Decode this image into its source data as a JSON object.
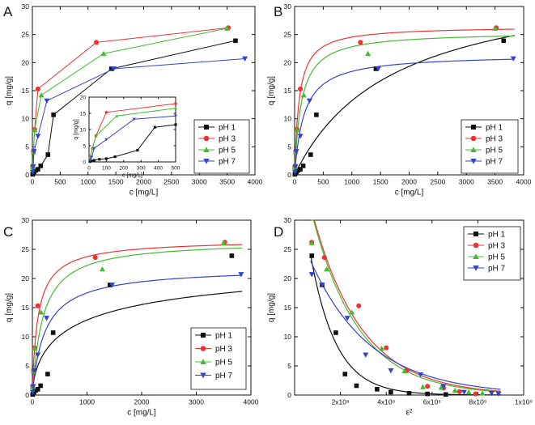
{
  "figure_labels": {
    "a": "A",
    "b": "B",
    "c": "C",
    "d": "D"
  },
  "series_colors": {
    "pH 1": "#111111",
    "pH 3": "#ee3333",
    "pH 5": "#44bb33",
    "pH 7": "#3344cc"
  },
  "series_markers": {
    "pH 1": "square",
    "pH 3": "circle",
    "pH 5": "triangle-up",
    "pH 7": "triangle-down"
  },
  "chart_data": [
    {
      "id": "a",
      "type": "line",
      "panel_label": "A",
      "xlabel": "c [mg/L]",
      "ylabel": "q [mg/g]",
      "xlim": [
        0,
        4000
      ],
      "ylim": [
        0,
        30
      ],
      "xticks": [
        0,
        500,
        1000,
        1500,
        2000,
        2500,
        3000,
        3500,
        4000
      ],
      "yticks": [
        0,
        5,
        10,
        15,
        20,
        25,
        30
      ],
      "legend": [
        "pH 1",
        "pH 3",
        "pH 5",
        "pH 7"
      ],
      "legend_position": "right-middle",
      "series": [
        {
          "name": "pH 1",
          "x": [
            5,
            15,
            30,
            60,
            100,
            150,
            280,
            380,
            1420,
            3650
          ],
          "y": [
            0.1,
            0.3,
            0.5,
            0.8,
            1.0,
            1.6,
            3.6,
            10.7,
            18.9,
            23.9
          ]
        },
        {
          "name": "pH 3",
          "x": [
            5,
            20,
            40,
            100,
            1150,
            3520
          ],
          "y": [
            1.5,
            4.2,
            8.1,
            15.3,
            23.6,
            26.2
          ]
        },
        {
          "name": "pH 5",
          "x": [
            5,
            20,
            40,
            160,
            1280,
            3500
          ],
          "y": [
            1.4,
            4.1,
            8.0,
            14.2,
            21.6,
            26.1
          ]
        },
        {
          "name": "pH 7",
          "x": [
            5,
            15,
            30,
            100,
            260,
            1460,
            3820
          ],
          "y": [
            0.5,
            1.5,
            4.2,
            6.9,
            13.2,
            18.9,
            20.7
          ]
        }
      ],
      "inset": {
        "xlabel": "c [mg/L]",
        "ylabel": "q [mg/g]",
        "xlim": [
          0,
          500
        ],
        "ylim": [
          0,
          20
        ],
        "xticks": [
          0,
          100,
          200,
          300,
          400,
          500
        ],
        "yticks": [
          0,
          5,
          10,
          15,
          20
        ],
        "series": [
          {
            "name": "pH 1",
            "x": [
              5,
              15,
              30,
              60,
              100,
              150,
              280,
              380,
              500
            ],
            "y": [
              0.1,
              0.3,
              0.5,
              0.8,
              1.0,
              1.6,
              3.6,
              10.7,
              11.5
            ]
          },
          {
            "name": "pH 3",
            "x": [
              5,
              20,
              40,
              100,
              500
            ],
            "y": [
              1.5,
              4.2,
              8.1,
              15.3,
              18.0
            ]
          },
          {
            "name": "pH 5",
            "x": [
              5,
              20,
              40,
              160,
              500
            ],
            "y": [
              1.4,
              4.1,
              8.0,
              14.2,
              16.6
            ]
          },
          {
            "name": "pH 7",
            "x": [
              5,
              15,
              30,
              100,
              260,
              500
            ],
            "y": [
              0.5,
              1.5,
              4.2,
              6.9,
              13.2,
              14.2
            ]
          }
        ]
      }
    },
    {
      "id": "b",
      "type": "scatter",
      "panel_label": "B",
      "xlabel": "c [mg/L]",
      "ylabel": "q [mg/g]",
      "xlim": [
        0,
        4000
      ],
      "ylim": [
        0,
        30
      ],
      "xticks": [
        0,
        500,
        1000,
        1500,
        2000,
        2500,
        3000,
        3500,
        4000
      ],
      "yticks": [
        0,
        5,
        10,
        15,
        20,
        25,
        30
      ],
      "legend": [
        "pH 1",
        "pH 3",
        "pH 5",
        "pH 7"
      ],
      "legend_position": "right-middle",
      "fit_model": "langmuir",
      "series": [
        {
          "name": "pH 1",
          "x": [
            5,
            15,
            30,
            60,
            100,
            150,
            280,
            380,
            1420,
            3650
          ],
          "y": [
            0.1,
            0.3,
            0.5,
            0.8,
            1.0,
            1.6,
            3.6,
            10.7,
            18.9,
            23.9
          ],
          "fit": {
            "qmax": 36.0,
            "k": 0.00058
          }
        },
        {
          "name": "pH 3",
          "x": [
            5,
            20,
            40,
            100,
            1150,
            3520
          ],
          "y": [
            1.5,
            4.2,
            8.1,
            15.3,
            23.6,
            26.2
          ],
          "fit": {
            "qmax": 26.5,
            "k": 0.0125
          }
        },
        {
          "name": "pH 5",
          "x": [
            5,
            20,
            40,
            160,
            1280,
            3500
          ],
          "y": [
            1.4,
            4.1,
            8.0,
            14.2,
            21.6,
            26.1
          ],
          "fit": {
            "qmax": 25.5,
            "k": 0.0085
          }
        },
        {
          "name": "pH 7",
          "x": [
            5,
            15,
            30,
            100,
            260,
            1460,
            3820
          ],
          "y": [
            0.5,
            1.5,
            4.2,
            6.9,
            13.2,
            18.9,
            20.7
          ],
          "fit": {
            "qmax": 21.5,
            "k": 0.006
          }
        }
      ]
    },
    {
      "id": "c",
      "type": "scatter",
      "panel_label": "C",
      "xlabel": "c [mg/L]",
      "ylabel": "q [mg/g]",
      "xlim": [
        0,
        4000
      ],
      "ylim": [
        0,
        30
      ],
      "xticks": [
        0,
        1000,
        2000,
        3000,
        4000
      ],
      "yticks": [
        0,
        5,
        10,
        15,
        20,
        25,
        30
      ],
      "legend": [
        "pH 1",
        "pH 3",
        "pH 5",
        "pH 7"
      ],
      "legend_position": "right-bottom",
      "fit_model": "langmuir-freundlich",
      "series": [
        {
          "name": "pH 1",
          "x": [
            5,
            15,
            30,
            60,
            100,
            150,
            280,
            380,
            1420,
            3650
          ],
          "y": [
            0.1,
            0.3,
            0.5,
            0.8,
            1.0,
            1.6,
            3.6,
            10.7,
            18.9,
            23.9
          ],
          "fit": {
            "qmax": 25.0,
            "k": 0.0011,
            "n": 1.6
          }
        },
        {
          "name": "pH 3",
          "x": [
            5,
            20,
            40,
            100,
            1150,
            3520
          ],
          "y": [
            1.5,
            4.2,
            8.1,
            15.3,
            23.6,
            26.2
          ],
          "fit": {
            "qmax": 26.8,
            "k": 0.0095,
            "n": 1.1
          }
        },
        {
          "name": "pH 5",
          "x": [
            5,
            20,
            40,
            160,
            1280,
            3500
          ],
          "y": [
            1.4,
            4.1,
            8.0,
            14.2,
            21.6,
            26.1
          ],
          "fit": {
            "qmax": 26.5,
            "k": 0.0052,
            "n": 1.0
          }
        },
        {
          "name": "pH 7",
          "x": [
            5,
            15,
            30,
            100,
            260,
            1460,
            3820
          ],
          "y": [
            0.5,
            1.5,
            4.2,
            6.9,
            13.2,
            18.9,
            20.7
          ],
          "fit": {
            "qmax": 22.0,
            "k": 0.0042,
            "n": 1.05
          }
        }
      ]
    },
    {
      "id": "d",
      "type": "scatter",
      "panel_label": "D",
      "xlabel": "ε²",
      "ylabel": "q [mg/g]",
      "xlim": [
        0,
        1000000000
      ],
      "ylim": [
        0,
        30
      ],
      "xticks": [
        200000000,
        400000000,
        600000000,
        800000000,
        1000000000
      ],
      "xtick_labels": [
        "2x10⁸",
        "4x10⁸",
        "6x10⁸",
        "8x10⁸",
        "1x10⁹"
      ],
      "yticks": [
        0,
        5,
        10,
        15,
        20,
        25,
        30
      ],
      "legend": [
        "pH 1",
        "pH 3",
        "pH 5",
        "pH 7"
      ],
      "legend_position": "top-right",
      "fit_model": "dubinin-radushkevich",
      "series": [
        {
          "name": "pH 1",
          "x": [
            75000000,
            120000000,
            180000000,
            220000000,
            270000000,
            360000000,
            420000000,
            500000000,
            580000000,
            660000000
          ],
          "y": [
            23.9,
            18.9,
            10.7,
            3.6,
            1.6,
            1.0,
            0.5,
            0.3,
            0.2,
            0.1
          ],
          "fit": {
            "qmax": 45.0,
            "beta": 9e-09
          }
        },
        {
          "name": "pH 3",
          "x": [
            75000000,
            130000000,
            280000000,
            400000000,
            490000000,
            580000000,
            650000000,
            720000000,
            790000000
          ],
          "y": [
            26.2,
            23.6,
            15.3,
            8.1,
            4.2,
            1.5,
            1.2,
            0.6,
            0.2
          ],
          "fit": {
            "qmax": 45.0,
            "beta": 4.7e-09
          }
        },
        {
          "name": "pH 5",
          "x": [
            75000000,
            140000000,
            250000000,
            380000000,
            480000000,
            560000000,
            640000000,
            700000000,
            760000000,
            820000000
          ],
          "y": [
            26.1,
            21.6,
            14.2,
            8.0,
            4.1,
            1.4,
            1.3,
            0.8,
            0.5,
            0.3
          ],
          "fit": {
            "qmax": 45.0,
            "beta": 4.9e-09
          }
        },
        {
          "name": "pH 7",
          "x": [
            75000000,
            120000000,
            230000000,
            310000000,
            420000000,
            550000000,
            650000000,
            740000000,
            860000000,
            890000000
          ],
          "y": [
            20.7,
            18.9,
            13.2,
            6.9,
            4.2,
            3.5,
            1.5,
            0.5,
            0.3,
            0.2
          ],
          "fit": {
            "qmax": 30.0,
            "beta": 3.8e-09
          }
        }
      ]
    }
  ]
}
